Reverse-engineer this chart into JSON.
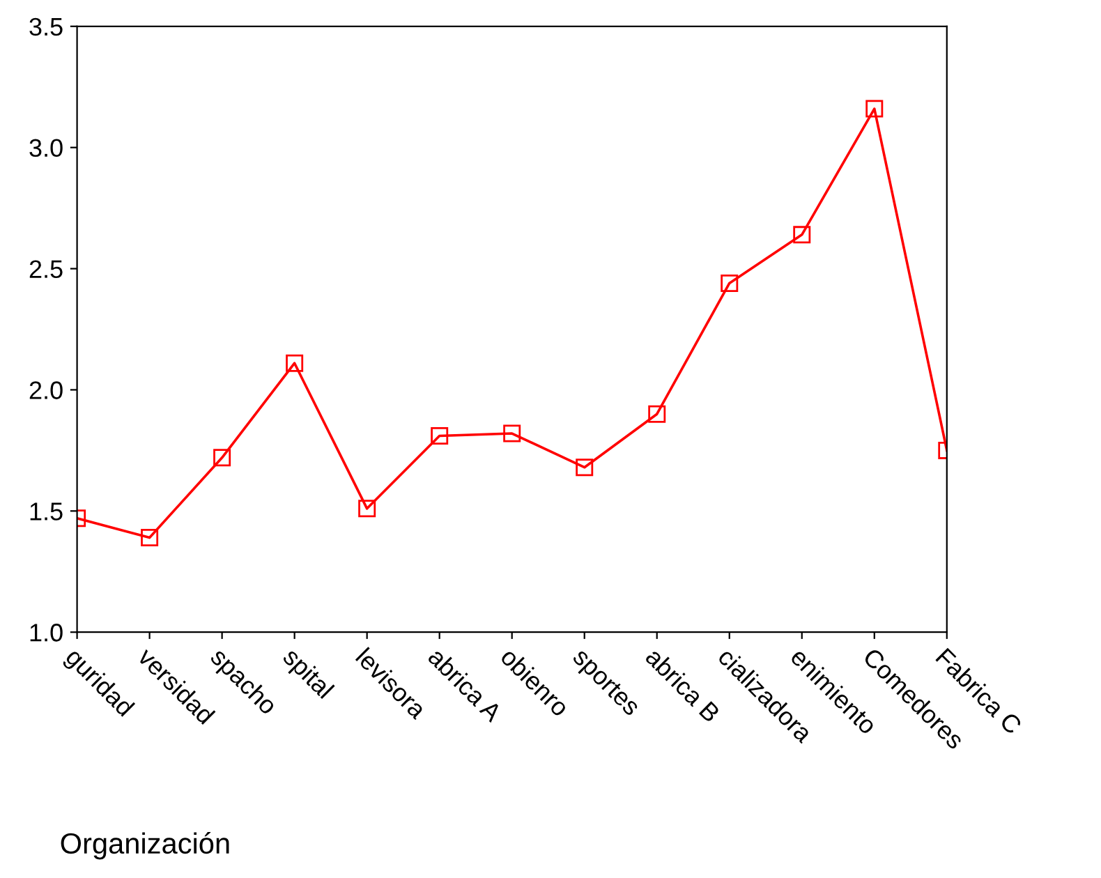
{
  "chart_data": {
    "type": "line",
    "xlabel": "Organización",
    "categories": [
      "guridad",
      "versidad",
      "spacho",
      "spital",
      "levisora",
      "abrica A",
      "obienro",
      "sportes",
      "abrica B",
      "cializadora",
      "enimiento",
      "Comedores",
      "Fabrica C"
    ],
    "series": [
      {
        "color": "#ff0000",
        "values": [
          1.47,
          1.39,
          1.72,
          2.11,
          1.51,
          1.81,
          1.82,
          1.68,
          1.9,
          2.44,
          2.64,
          3.16,
          1.75
        ]
      }
    ],
    "ylim": [
      1.0,
      3.5
    ],
    "yticks": [
      {
        "value": 1.0,
        "label": "1.0"
      },
      {
        "value": 1.5,
        "label": "1.5"
      },
      {
        "value": 2.0,
        "label": "2.0"
      },
      {
        "value": 2.5,
        "label": "2.5"
      },
      {
        "value": 3.0,
        "label": "3.0"
      },
      {
        "value": 3.5,
        "label": "3.5"
      }
    ],
    "marker": "square",
    "line_style": "solid",
    "grid": false,
    "legend": false
  }
}
